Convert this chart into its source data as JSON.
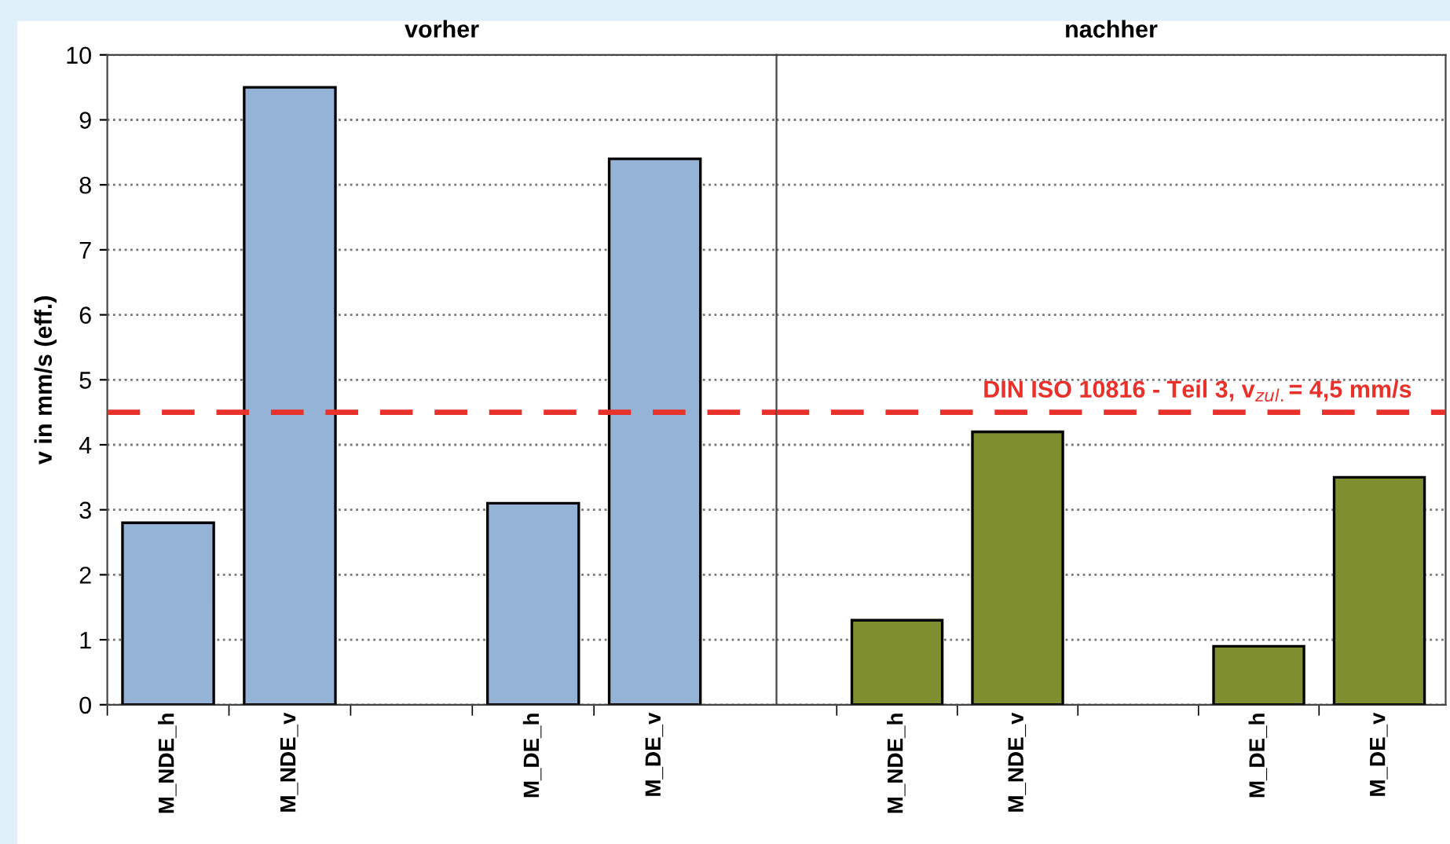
{
  "chart_data": [
    {
      "type": "bar",
      "title": "vorher",
      "ylabel": "v in mm/s (eff.)",
      "categories": [
        "M_NDE_h",
        "M_NDE_v",
        null,
        "M_DE_h",
        "M_DE_v"
      ],
      "series": [
        {
          "color": "#95b3d7",
          "values": [
            2.8,
            9.5,
            null,
            3.1,
            8.4
          ]
        }
      ],
      "ylim": [
        0,
        10
      ],
      "yticks": [
        0,
        1,
        2,
        3,
        4,
        5,
        6,
        7,
        8,
        9,
        10
      ],
      "grid": "y",
      "ref_lines": [
        {
          "axis": "y",
          "value": 4.5,
          "color": "#e8312a",
          "line_style": "dashed"
        }
      ]
    },
    {
      "type": "bar",
      "title": "nachher",
      "categories": [
        "M_NDE_h",
        "M_NDE_v",
        null,
        "M_DE_h",
        "M_DE_v"
      ],
      "series": [
        {
          "color": "#7f8f2f",
          "values": [
            1.3,
            4.2,
            null,
            0.9,
            3.5
          ]
        }
      ],
      "ylim": [
        0,
        10
      ],
      "yticks": [
        0,
        1,
        2,
        3,
        4,
        5,
        6,
        7,
        8,
        9,
        10
      ],
      "grid": "y",
      "tick_labels": "x",
      "ref_lines": [
        {
          "axis": "y",
          "value": 4.5,
          "label": "DIN ISO 10816 - Teil 3, v$_{zul.}$= 4,5 mm/s",
          "color": "#e8312a",
          "line_style": "dashed"
        }
      ]
    }
  ]
}
